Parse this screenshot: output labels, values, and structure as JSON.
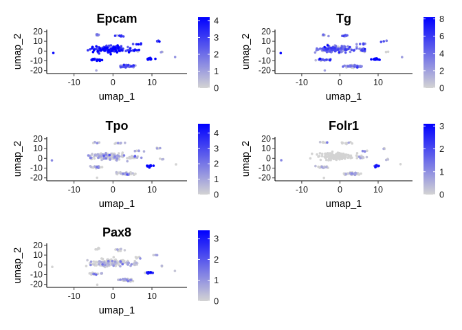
{
  "chart_data": [
    {
      "type": "scatter",
      "title": "Epcam",
      "xlabel": "umap_1",
      "ylabel": "umap_2",
      "xticks": [
        "-10",
        "0",
        "10"
      ],
      "yticks": [
        "20",
        "10",
        "0",
        "-10",
        "-20"
      ],
      "xlim": [
        -17,
        19
      ],
      "ylim": [
        -23,
        22
      ],
      "colorbar": {
        "min": 0,
        "max": 4.2,
        "ticks": [
          "0",
          "1",
          "2",
          "3",
          "4"
        ],
        "low_color": "#d3d3d3",
        "high_color": "#0000ff"
      },
      "clusters": [
        {
          "x": -1,
          "y": 2,
          "sx": 4.2,
          "sy": 3.2,
          "n": 140,
          "expr": 0.82
        },
        {
          "x": 5.5,
          "y": 1,
          "sx": 1.2,
          "sy": 1.5,
          "n": 14,
          "expr": 0.7
        },
        {
          "x": -4.5,
          "y": -9,
          "sx": 1.6,
          "sy": 1.0,
          "n": 20,
          "expr": 0.86
        },
        {
          "x": 3.5,
          "y": -15.5,
          "sx": 2.0,
          "sy": 1.3,
          "n": 40,
          "expr": 0.5
        },
        {
          "x": 9.5,
          "y": -8,
          "sx": 0.9,
          "sy": 0.9,
          "n": 16,
          "expr": 0.85
        },
        {
          "x": 1.5,
          "y": 15.5,
          "sx": 1.5,
          "sy": 1.0,
          "n": 10,
          "expr": 0.6
        },
        {
          "x": -4,
          "y": 16.5,
          "sx": 1.2,
          "sy": 0.8,
          "n": 6,
          "expr": 0.5
        },
        {
          "x": 6.5,
          "y": 7.5,
          "sx": 0.8,
          "sy": 0.8,
          "n": 5,
          "expr": 0.8
        },
        {
          "x": 11.5,
          "y": 10,
          "sx": 0.8,
          "sy": 0.6,
          "n": 4,
          "expr": 0.8
        },
        {
          "x": 12.5,
          "y": -1,
          "sx": 0.5,
          "sy": 0.5,
          "n": 3,
          "expr": 0.05
        },
        {
          "x": -15.5,
          "y": -2,
          "sx": 0.3,
          "sy": 0.3,
          "n": 1,
          "expr": 1.0
        },
        {
          "x": 16,
          "y": -6,
          "sx": 0.3,
          "sy": 0.3,
          "n": 1,
          "expr": 0.1
        },
        {
          "x": -4,
          "y": -20,
          "sx": 0.3,
          "sy": 0.3,
          "n": 1,
          "expr": 0.3
        }
      ]
    },
    {
      "type": "scatter",
      "title": "Tg",
      "xlabel": "umap_1",
      "ylabel": "umap_2",
      "xticks": [
        "-10",
        "0",
        "10"
      ],
      "yticks": [
        "20",
        "10",
        "0",
        "-10",
        "-20"
      ],
      "xlim": [
        -17,
        19
      ],
      "ylim": [
        -23,
        22
      ],
      "colorbar": {
        "min": 0,
        "max": 8.2,
        "ticks": [
          "0",
          "2",
          "4",
          "6",
          "8"
        ],
        "low_color": "#d3d3d3",
        "high_color": "#0000ff"
      },
      "clusters": [
        {
          "x": -1,
          "y": 2,
          "sx": 4.2,
          "sy": 3.2,
          "n": 140,
          "expr": 0.45
        },
        {
          "x": 5.5,
          "y": 1,
          "sx": 1.2,
          "sy": 1.5,
          "n": 14,
          "expr": 0.4
        },
        {
          "x": -4.5,
          "y": -9,
          "sx": 1.6,
          "sy": 1.0,
          "n": 20,
          "expr": 0.5
        },
        {
          "x": 3.5,
          "y": -15.5,
          "sx": 2.0,
          "sy": 1.3,
          "n": 40,
          "expr": 0.3
        },
        {
          "x": 9.5,
          "y": -8,
          "sx": 0.9,
          "sy": 0.9,
          "n": 16,
          "expr": 0.95
        },
        {
          "x": 1.5,
          "y": 15.5,
          "sx": 1.5,
          "sy": 1.0,
          "n": 10,
          "expr": 0.35
        },
        {
          "x": -4,
          "y": 16.5,
          "sx": 1.2,
          "sy": 0.8,
          "n": 6,
          "expr": 0.35
        },
        {
          "x": 6.5,
          "y": 7.5,
          "sx": 0.8,
          "sy": 0.8,
          "n": 5,
          "expr": 0.5
        },
        {
          "x": 11.5,
          "y": 10,
          "sx": 0.8,
          "sy": 0.6,
          "n": 4,
          "expr": 0.6
        },
        {
          "x": 12.5,
          "y": -1,
          "sx": 0.5,
          "sy": 0.5,
          "n": 3,
          "expr": 0.05
        },
        {
          "x": -15.5,
          "y": -2,
          "sx": 0.3,
          "sy": 0.3,
          "n": 1,
          "expr": 1.0
        },
        {
          "x": 16,
          "y": -6,
          "sx": 0.3,
          "sy": 0.3,
          "n": 1,
          "expr": 0.1
        },
        {
          "x": -4,
          "y": -20,
          "sx": 0.3,
          "sy": 0.3,
          "n": 1,
          "expr": 0.2
        }
      ]
    },
    {
      "type": "scatter",
      "title": "Tpo",
      "xlabel": "umap_1",
      "ylabel": "umap_2",
      "xticks": [
        "-10",
        "0",
        "10"
      ],
      "yticks": [
        "20",
        "10",
        "0",
        "-10",
        "-20"
      ],
      "xlim": [
        -17,
        19
      ],
      "ylim": [
        -23,
        22
      ],
      "colorbar": {
        "min": 0,
        "max": 4.6,
        "ticks": [
          "0",
          "1",
          "2",
          "3",
          "4"
        ],
        "low_color": "#d3d3d3",
        "high_color": "#0000ff"
      },
      "clusters": [
        {
          "x": -1,
          "y": 2,
          "sx": 4.2,
          "sy": 3.2,
          "n": 140,
          "expr": 0.06
        },
        {
          "x": 5.5,
          "y": 1,
          "sx": 1.2,
          "sy": 1.5,
          "n": 14,
          "expr": 0.05
        },
        {
          "x": -4.5,
          "y": -9,
          "sx": 1.6,
          "sy": 1.0,
          "n": 20,
          "expr": 0.1
        },
        {
          "x": 3.5,
          "y": -15.5,
          "sx": 2.0,
          "sy": 1.3,
          "n": 40,
          "expr": 0.05
        },
        {
          "x": 9.5,
          "y": -8,
          "sx": 0.9,
          "sy": 0.9,
          "n": 16,
          "expr": 0.9
        },
        {
          "x": 1.5,
          "y": 15.5,
          "sx": 1.5,
          "sy": 1.0,
          "n": 10,
          "expr": 0.1
        },
        {
          "x": -4,
          "y": 16.5,
          "sx": 1.2,
          "sy": 0.8,
          "n": 6,
          "expr": 0.1
        },
        {
          "x": 6.5,
          "y": 7.5,
          "sx": 0.8,
          "sy": 0.8,
          "n": 5,
          "expr": 0.05
        },
        {
          "x": 11.5,
          "y": 10,
          "sx": 0.8,
          "sy": 0.6,
          "n": 4,
          "expr": 0.05
        },
        {
          "x": 12.5,
          "y": -1,
          "sx": 0.5,
          "sy": 0.5,
          "n": 3,
          "expr": 0.05
        },
        {
          "x": -15.5,
          "y": -2,
          "sx": 0.3,
          "sy": 0.3,
          "n": 1,
          "expr": 0.5
        },
        {
          "x": 16,
          "y": -6,
          "sx": 0.3,
          "sy": 0.3,
          "n": 1,
          "expr": 0.05
        },
        {
          "x": -4,
          "y": -20,
          "sx": 0.3,
          "sy": 0.3,
          "n": 1,
          "expr": 0.05
        }
      ]
    },
    {
      "type": "scatter",
      "title": "Folr1",
      "xlabel": "umap_1",
      "ylabel": "umap_2",
      "xticks": [
        "-10",
        "0",
        "10"
      ],
      "yticks": [
        "20",
        "10",
        "0",
        "-10",
        "-20"
      ],
      "xlim": [
        -17,
        19
      ],
      "ylim": [
        -23,
        22
      ],
      "colorbar": {
        "min": 0,
        "max": 3.1,
        "ticks": [
          "0",
          "1",
          "2",
          "3"
        ],
        "low_color": "#d3d3d3",
        "high_color": "#0000ff"
      },
      "clusters": [
        {
          "x": -1,
          "y": 2,
          "sx": 4.2,
          "sy": 3.2,
          "n": 140,
          "expr": 0.03
        },
        {
          "x": 5.5,
          "y": 1,
          "sx": 1.2,
          "sy": 1.5,
          "n": 14,
          "expr": 0.05
        },
        {
          "x": -4.5,
          "y": -9,
          "sx": 1.6,
          "sy": 1.0,
          "n": 20,
          "expr": 0.05
        },
        {
          "x": 3.5,
          "y": -15.5,
          "sx": 2.0,
          "sy": 1.3,
          "n": 40,
          "expr": 0.05
        },
        {
          "x": 9.5,
          "y": -8,
          "sx": 0.9,
          "sy": 0.9,
          "n": 16,
          "expr": 0.6
        },
        {
          "x": 1.5,
          "y": 15.5,
          "sx": 1.5,
          "sy": 1.0,
          "n": 10,
          "expr": 0.05
        },
        {
          "x": -4,
          "y": 16.5,
          "sx": 1.2,
          "sy": 0.8,
          "n": 6,
          "expr": 0.05
        },
        {
          "x": 6.5,
          "y": 7.5,
          "sx": 0.8,
          "sy": 0.8,
          "n": 5,
          "expr": 0.05
        },
        {
          "x": 11.5,
          "y": 10,
          "sx": 0.8,
          "sy": 0.6,
          "n": 4,
          "expr": 0.05
        },
        {
          "x": 12.5,
          "y": -1,
          "sx": 0.5,
          "sy": 0.5,
          "n": 3,
          "expr": 0.05
        },
        {
          "x": -15.5,
          "y": -2,
          "sx": 0.3,
          "sy": 0.3,
          "n": 1,
          "expr": 0.05
        },
        {
          "x": 16,
          "y": -6,
          "sx": 0.3,
          "sy": 0.3,
          "n": 1,
          "expr": 0.05
        },
        {
          "x": -4,
          "y": -20,
          "sx": 0.3,
          "sy": 0.3,
          "n": 1,
          "expr": 0.05
        }
      ]
    },
    {
      "type": "scatter",
      "title": "Pax8",
      "xlabel": "umap_1",
      "ylabel": "umap_2",
      "xticks": [
        "-10",
        "0",
        "10"
      ],
      "yticks": [
        "20",
        "10",
        "0",
        "-10",
        "-20"
      ],
      "xlim": [
        -17,
        19
      ],
      "ylim": [
        -23,
        22
      ],
      "colorbar": {
        "min": 0,
        "max": 3.4,
        "ticks": [
          "0",
          "1",
          "2",
          "3"
        ],
        "low_color": "#d3d3d3",
        "high_color": "#0000ff"
      },
      "clusters": [
        {
          "x": -1,
          "y": 2,
          "sx": 4.2,
          "sy": 3.2,
          "n": 140,
          "expr": 0.05
        },
        {
          "x": 5.5,
          "y": 1,
          "sx": 1.2,
          "sy": 1.5,
          "n": 14,
          "expr": 0.05
        },
        {
          "x": -4.5,
          "y": -9,
          "sx": 1.6,
          "sy": 1.0,
          "n": 20,
          "expr": 0.1
        },
        {
          "x": 3.5,
          "y": -15.5,
          "sx": 2.0,
          "sy": 1.3,
          "n": 40,
          "expr": 0.05
        },
        {
          "x": 9.5,
          "y": -8,
          "sx": 0.9,
          "sy": 0.9,
          "n": 16,
          "expr": 0.8
        },
        {
          "x": 1.5,
          "y": 15.5,
          "sx": 1.5,
          "sy": 1.0,
          "n": 10,
          "expr": 0.05
        },
        {
          "x": -4,
          "y": 16.5,
          "sx": 1.2,
          "sy": 0.8,
          "n": 6,
          "expr": 0.05
        },
        {
          "x": 6.5,
          "y": 7.5,
          "sx": 0.8,
          "sy": 0.8,
          "n": 5,
          "expr": 0.05
        },
        {
          "x": 11.5,
          "y": 10,
          "sx": 0.8,
          "sy": 0.6,
          "n": 4,
          "expr": 0.05
        },
        {
          "x": 12.5,
          "y": -1,
          "sx": 0.5,
          "sy": 0.5,
          "n": 3,
          "expr": 0.05
        },
        {
          "x": -15.5,
          "y": -2,
          "sx": 0.3,
          "sy": 0.3,
          "n": 1,
          "expr": 0.05
        },
        {
          "x": 16,
          "y": -6,
          "sx": 0.3,
          "sy": 0.3,
          "n": 1,
          "expr": 0.05
        },
        {
          "x": -4,
          "y": -20,
          "sx": 0.3,
          "sy": 0.3,
          "n": 1,
          "expr": 0.05
        }
      ]
    }
  ]
}
